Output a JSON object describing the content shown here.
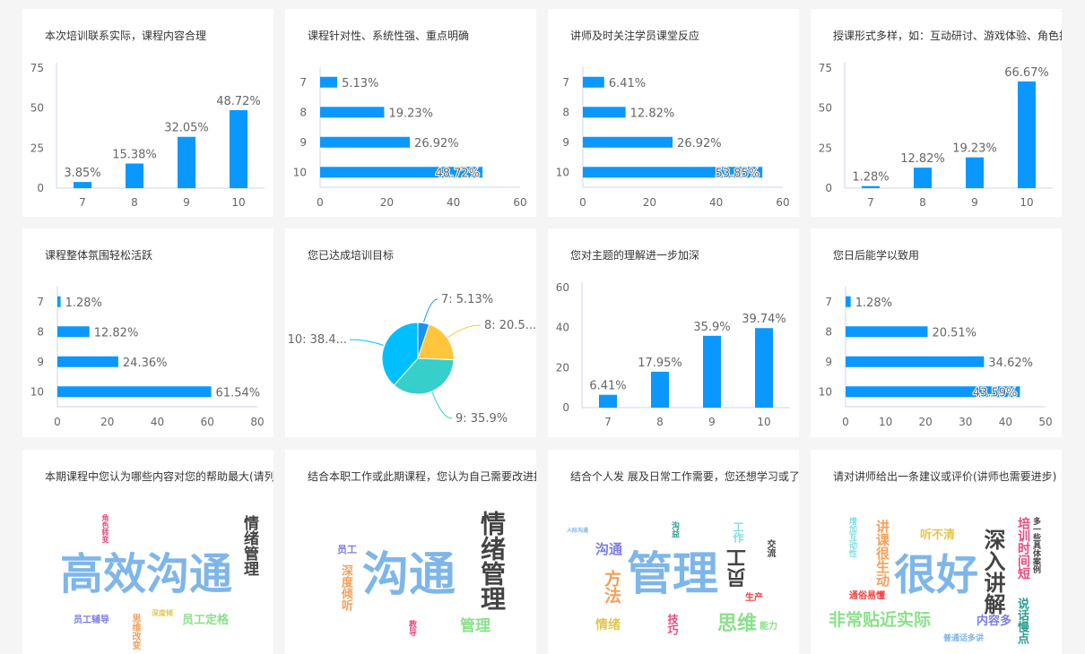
{
  "colors": {
    "bar": "#0A98FF",
    "axis": "#CCD6EB",
    "text": "#666666",
    "pie": [
      "#1890FF",
      "#FFC53D",
      "#36CFC9",
      "#00BFFF"
    ]
  },
  "cards": [
    {
      "title": "本次培训联系实际，课程内容合理"
    },
    {
      "title": "课程针对性、系统性强、重点明确"
    },
    {
      "title": "讲师及时关注学员课堂反应"
    },
    {
      "title": "授课形式多样，如：互动研讨、游戏体验、角色扮演"
    },
    {
      "title": "课程整体氛围轻松活跃"
    },
    {
      "title": "您已达成培训目标"
    },
    {
      "title": "您对主题的理解进一步加深"
    },
    {
      "title": "您日后能学以致用"
    },
    {
      "title": "本期课程中您认为哪些内容对您的帮助最大(请列举)",
      "words": [
        "高效沟通",
        "情绪管理",
        "员工辅导",
        "员工定格",
        "思维改变",
        "深度倾",
        "角色转变"
      ]
    },
    {
      "title": "结合本职工作或此期课程，您认为自己需要改进提升",
      "words": [
        "沟通",
        "情绪管理",
        "员工",
        "深度倾听",
        "管理",
        "教导"
      ]
    },
    {
      "title": "结合个人发 展及日常工作需要，您还想学习或了解",
      "words": [
        "管理",
        "员工",
        "沟通",
        "方法",
        "情绪",
        "思维",
        "能力",
        "技巧",
        "生产",
        "交流",
        "工作",
        "人际沟通",
        "沟益"
      ]
    },
    {
      "title": "请对讲师给出一条建议或评价(讲师也需要进步)",
      "words": [
        "很好",
        "深入讲解",
        "非常贴近实际",
        "讲课很生动",
        "听不清",
        "通俗易懂",
        "内容多",
        "培训时间短",
        "说话慢点",
        "多一些具体案例",
        "增加互动性",
        "普通话多讲"
      ]
    }
  ],
  "chart_data": [
    {
      "type": "bar",
      "orientation": "vertical",
      "categories": [
        "7",
        "8",
        "9",
        "10"
      ],
      "values": [
        3.85,
        15.38,
        32.05,
        48.72
      ],
      "labels": [
        "3.85%",
        "15.38%",
        "32.05%",
        "48.72%"
      ],
      "ylim": [
        0,
        75
      ],
      "ticks": [
        "0",
        "25",
        "50",
        "75"
      ]
    },
    {
      "type": "bar",
      "orientation": "horizontal",
      "categories": [
        "7",
        "8",
        "9",
        "10"
      ],
      "values": [
        5.13,
        19.23,
        26.92,
        48.72
      ],
      "labels": [
        "5.13%",
        "19.23%",
        "26.92%",
        "48.72%"
      ],
      "xlim": [
        0,
        60
      ],
      "ticks": [
        "0",
        "20",
        "40",
        "60"
      ]
    },
    {
      "type": "bar",
      "orientation": "horizontal",
      "categories": [
        "7",
        "8",
        "9",
        "10"
      ],
      "values": [
        6.41,
        12.82,
        26.92,
        53.85
      ],
      "labels": [
        "6.41%",
        "12.82%",
        "26.92%",
        "53.85%"
      ],
      "xlim": [
        0,
        60
      ],
      "ticks": [
        "0",
        "20",
        "40",
        "60"
      ]
    },
    {
      "type": "bar",
      "orientation": "vertical",
      "categories": [
        "7",
        "8",
        "9",
        "10"
      ],
      "values": [
        1.28,
        12.82,
        19.23,
        66.67
      ],
      "labels": [
        "1.28%",
        "12.82%",
        "19.23%",
        "66.67%"
      ],
      "ylim": [
        0,
        75
      ],
      "ticks": [
        "0",
        "25",
        "50",
        "75"
      ]
    },
    {
      "type": "bar",
      "orientation": "horizontal",
      "categories": [
        "7",
        "8",
        "9",
        "10"
      ],
      "values": [
        1.28,
        12.82,
        24.36,
        61.54
      ],
      "labels": [
        "1.28%",
        "12.82%",
        "24.36%",
        "61.54%"
      ],
      "xlim": [
        0,
        80
      ],
      "ticks": [
        "0",
        "20",
        "40",
        "60",
        "80"
      ]
    },
    {
      "type": "pie",
      "categories": [
        "7",
        "8",
        "9",
        "10"
      ],
      "values": [
        5.13,
        20.51,
        35.9,
        38.46
      ],
      "labels": [
        "7: 5.13%",
        "8: 20.5...",
        "9: 35.9%",
        "10: 38.4..."
      ]
    },
    {
      "type": "bar",
      "orientation": "vertical",
      "categories": [
        "7",
        "8",
        "9",
        "10"
      ],
      "values": [
        6.41,
        17.95,
        35.9,
        39.74
      ],
      "labels": [
        "6.41%",
        "17.95%",
        "35.9%",
        "39.74%"
      ],
      "ylim": [
        0,
        60
      ],
      "ticks": [
        "0",
        "20",
        "40",
        "60"
      ]
    },
    {
      "type": "bar",
      "orientation": "horizontal",
      "categories": [
        "7",
        "8",
        "9",
        "10"
      ],
      "values": [
        1.28,
        20.51,
        34.62,
        43.59
      ],
      "labels": [
        "1.28%",
        "20.51%",
        "34.62%",
        "43.59%"
      ],
      "xlim": [
        0,
        50
      ],
      "ticks": [
        "0",
        "10",
        "20",
        "30",
        "40",
        "50"
      ]
    }
  ]
}
